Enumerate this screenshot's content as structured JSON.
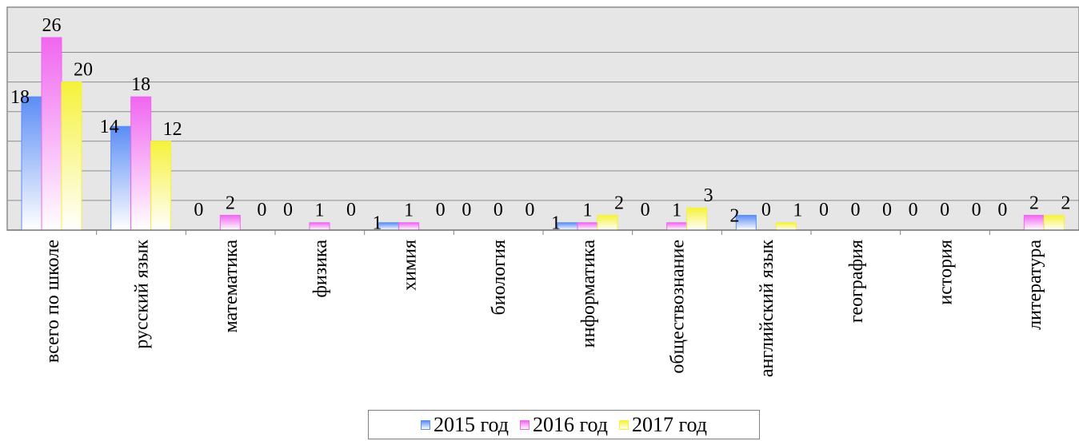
{
  "chart_data": {
    "type": "bar",
    "title": "",
    "xlabel": "",
    "ylabel": "",
    "ylim": [
      0,
      26
    ],
    "grid": true,
    "legend_position": "bottom",
    "categories": [
      "всего по школе",
      "русский язык",
      "математика",
      "физика",
      "химия",
      "биология",
      "информатика",
      "обществознание",
      "английский язык",
      "география",
      "история",
      "литература"
    ],
    "series": [
      {
        "name": "2015 год",
        "color": "#5b8df5",
        "values": [
          18,
          14,
          0,
          0,
          1,
          0,
          1,
          0,
          2,
          0,
          0,
          0
        ]
      },
      {
        "name": "2016 год",
        "color": "#f066f0",
        "values": [
          26,
          18,
          2,
          1,
          1,
          0,
          1,
          1,
          0,
          0,
          0,
          2
        ]
      },
      {
        "name": "2017 год",
        "color": "#f5f23a",
        "values": [
          20,
          12,
          0,
          0,
          0,
          0,
          2,
          3,
          1,
          0,
          0,
          2
        ]
      }
    ]
  }
}
